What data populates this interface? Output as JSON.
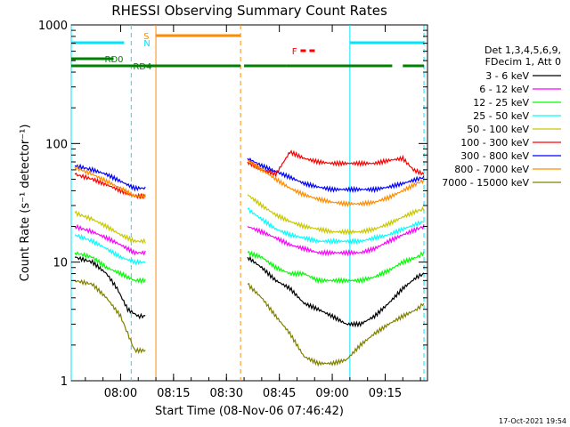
{
  "chart_data": {
    "type": "line",
    "title": "RHESSI Observing Summary Count Rates",
    "xlabel": "Start Time (08-Nov-06 07:46:42)",
    "ylabel": "Count Rate (s⁻¹ detector⁻¹)",
    "y_scale": "log",
    "ylim": [
      1,
      1000
    ],
    "xlim": [
      "07:46",
      "09:27"
    ],
    "x_ticks": [
      "08:00",
      "08:15",
      "08:30",
      "08:45",
      "09:00",
      "09:15"
    ],
    "y_ticks": [
      "1",
      "10",
      "100",
      "1000"
    ],
    "legend_header": [
      "Det 1,3,4,5,6,9,",
      "FDecim 1, Att 0"
    ],
    "legend_placement": "right",
    "footer_timestamp": "17-Oct-2021 19:54",
    "flags": {
      "S": {
        "color": "#ff8c00",
        "intervals": [
          [
            "08:10",
            "08:34"
          ]
        ]
      },
      "N": {
        "color": "#00e5ff",
        "intervals": [
          [
            "07:46",
            "08:01"
          ],
          [
            "09:05",
            "09:26"
          ]
        ]
      },
      "F": {
        "color": "#ff0000",
        "intervals": [
          [
            "08:51",
            "08:56"
          ]
        ]
      },
      "RD0": {
        "color": "#008000",
        "intervals": [
          [
            "07:46",
            "07:58"
          ]
        ]
      },
      "RD4": {
        "color": "#008000",
        "intervals": [
          [
            "07:46",
            "08:34"
          ],
          [
            "08:35",
            "08:47"
          ],
          [
            "08:47",
            "09:17"
          ],
          [
            "09:20",
            "09:26"
          ]
        ]
      }
    },
    "vlines": [
      {
        "t": "07:46",
        "color": "#00e5ff",
        "style": "solid"
      },
      {
        "t": "08:03",
        "color": "#00e5ff",
        "style": "dashed"
      },
      {
        "t": "08:10",
        "color": "#ff8c00",
        "style": "solid"
      },
      {
        "t": "08:34",
        "color": "#ff8c00",
        "style": "dashed"
      },
      {
        "t": "09:05",
        "color": "#00e5ff",
        "style": "solid"
      },
      {
        "t": "09:26",
        "color": "#00e5ff",
        "style": "dashed"
      }
    ],
    "series": [
      {
        "name": "3 - 6 keV",
        "color": "#000000",
        "values": [
          [
            "07:47",
            11
          ],
          [
            "07:52",
            10
          ],
          [
            "07:56",
            8
          ],
          [
            "07:59",
            6
          ],
          [
            "08:02",
            4
          ],
          [
            "08:05",
            3.5
          ],
          [
            "08:07",
            3.5
          ],
          [
            "08:36",
            11
          ],
          [
            "08:40",
            9
          ],
          [
            "08:44",
            7
          ],
          [
            "08:48",
            6
          ],
          [
            "08:52",
            4.5
          ],
          [
            "08:56",
            4
          ],
          [
            "09:00",
            3.5
          ],
          [
            "09:04",
            3
          ],
          [
            "09:08",
            3
          ],
          [
            "09:12",
            3.5
          ],
          [
            "09:16",
            4.5
          ],
          [
            "09:20",
            6
          ],
          [
            "09:24",
            7.5
          ],
          [
            "09:26",
            8
          ]
        ]
      },
      {
        "name": "6 - 12 keV",
        "color": "#ff00ff",
        "values": [
          [
            "07:47",
            20
          ],
          [
            "07:52",
            18
          ],
          [
            "07:56",
            16
          ],
          [
            "08:00",
            14
          ],
          [
            "08:04",
            12
          ],
          [
            "08:07",
            12
          ],
          [
            "08:36",
            20
          ],
          [
            "08:40",
            18
          ],
          [
            "08:44",
            16
          ],
          [
            "08:48",
            14
          ],
          [
            "08:52",
            13
          ],
          [
            "08:56",
            12
          ],
          [
            "09:00",
            12
          ],
          [
            "09:04",
            12
          ],
          [
            "09:08",
            12
          ],
          [
            "09:12",
            13
          ],
          [
            "09:16",
            15
          ],
          [
            "09:20",
            17
          ],
          [
            "09:24",
            19
          ],
          [
            "09:26",
            20
          ]
        ]
      },
      {
        "name": "12 - 25 keV",
        "color": "#00ff00",
        "values": [
          [
            "07:47",
            12
          ],
          [
            "07:52",
            11
          ],
          [
            "07:56",
            9
          ],
          [
            "08:00",
            8
          ],
          [
            "08:04",
            7
          ],
          [
            "08:07",
            7
          ],
          [
            "08:36",
            12
          ],
          [
            "08:40",
            11
          ],
          [
            "08:44",
            9
          ],
          [
            "08:48",
            8
          ],
          [
            "08:52",
            8
          ],
          [
            "08:56",
            7
          ],
          [
            "09:00",
            7
          ],
          [
            "09:04",
            7
          ],
          [
            "09:08",
            7
          ],
          [
            "09:12",
            7.5
          ],
          [
            "09:16",
            8.5
          ],
          [
            "09:20",
            10
          ],
          [
            "09:24",
            11
          ],
          [
            "09:26",
            12
          ]
        ]
      },
      {
        "name": "25 - 50 keV",
        "color": "#00ffff",
        "values": [
          [
            "07:47",
            17
          ],
          [
            "07:52",
            15
          ],
          [
            "07:56",
            13
          ],
          [
            "08:00",
            11
          ],
          [
            "08:04",
            10
          ],
          [
            "08:07",
            10
          ],
          [
            "08:36",
            28
          ],
          [
            "08:40",
            23
          ],
          [
            "08:44",
            19
          ],
          [
            "08:48",
            17
          ],
          [
            "08:52",
            16
          ],
          [
            "08:56",
            15
          ],
          [
            "09:00",
            15
          ],
          [
            "09:04",
            15
          ],
          [
            "09:08",
            15
          ],
          [
            "09:12",
            16
          ],
          [
            "09:16",
            17
          ],
          [
            "09:20",
            19
          ],
          [
            "09:24",
            21
          ],
          [
            "09:26",
            22
          ]
        ]
      },
      {
        "name": "50 - 100 keV",
        "color": "#c8c800",
        "values": [
          [
            "07:47",
            26
          ],
          [
            "07:52",
            23
          ],
          [
            "07:56",
            20
          ],
          [
            "08:00",
            17
          ],
          [
            "08:04",
            15
          ],
          [
            "08:07",
            15
          ],
          [
            "08:36",
            37
          ],
          [
            "08:40",
            30
          ],
          [
            "08:44",
            25
          ],
          [
            "08:48",
            22
          ],
          [
            "08:52",
            20
          ],
          [
            "08:56",
            19
          ],
          [
            "09:00",
            18
          ],
          [
            "09:04",
            18
          ],
          [
            "09:08",
            18
          ],
          [
            "09:12",
            19
          ],
          [
            "09:16",
            21
          ],
          [
            "09:20",
            24
          ],
          [
            "09:24",
            27
          ],
          [
            "09:26",
            28
          ]
        ]
      },
      {
        "name": "100 - 300 keV",
        "color": "#ff0000",
        "values": [
          [
            "07:47",
            55
          ],
          [
            "07:52",
            50
          ],
          [
            "07:56",
            45
          ],
          [
            "08:00",
            40
          ],
          [
            "08:04",
            36
          ],
          [
            "08:07",
            36
          ],
          [
            "08:36",
            70
          ],
          [
            "08:40",
            60
          ],
          [
            "08:44",
            55
          ],
          [
            "08:48",
            85
          ],
          [
            "08:52",
            75
          ],
          [
            "08:56",
            70
          ],
          [
            "09:00",
            68
          ],
          [
            "09:04",
            68
          ],
          [
            "09:08",
            68
          ],
          [
            "09:12",
            68
          ],
          [
            "09:16",
            72
          ],
          [
            "09:20",
            75
          ],
          [
            "09:23",
            60
          ],
          [
            "09:26",
            55
          ]
        ]
      },
      {
        "name": "300 - 800 keV",
        "color": "#0000ff",
        "values": [
          [
            "07:47",
            65
          ],
          [
            "07:52",
            60
          ],
          [
            "07:56",
            55
          ],
          [
            "08:00",
            48
          ],
          [
            "08:04",
            42
          ],
          [
            "08:07",
            42
          ],
          [
            "08:36",
            75
          ],
          [
            "08:40",
            65
          ],
          [
            "08:44",
            58
          ],
          [
            "08:48",
            52
          ],
          [
            "08:52",
            46
          ],
          [
            "08:56",
            43
          ],
          [
            "09:00",
            41
          ],
          [
            "09:04",
            41
          ],
          [
            "09:08",
            41
          ],
          [
            "09:12",
            41
          ],
          [
            "09:16",
            43
          ],
          [
            "09:20",
            46
          ],
          [
            "09:24",
            50
          ],
          [
            "09:26",
            52
          ]
        ]
      },
      {
        "name": "800 - 7000 keV",
        "color": "#ff8c00",
        "values": [
          [
            "07:47",
            63
          ],
          [
            "07:52",
            55
          ],
          [
            "07:56",
            48
          ],
          [
            "08:00",
            42
          ],
          [
            "08:04",
            36
          ],
          [
            "08:07",
            36
          ],
          [
            "08:36",
            72
          ],
          [
            "08:40",
            60
          ],
          [
            "08:44",
            50
          ],
          [
            "08:48",
            42
          ],
          [
            "08:52",
            37
          ],
          [
            "08:56",
            34
          ],
          [
            "09:00",
            32
          ],
          [
            "09:04",
            31
          ],
          [
            "09:08",
            31
          ],
          [
            "09:12",
            32
          ],
          [
            "09:16",
            35
          ],
          [
            "09:20",
            40
          ],
          [
            "09:24",
            46
          ],
          [
            "09:26",
            49
          ]
        ]
      },
      {
        "name": "7000 - 15000 keV",
        "color": "#808000",
        "values": [
          [
            "07:47",
            7
          ],
          [
            "07:52",
            6.5
          ],
          [
            "07:56",
            5
          ],
          [
            "08:00",
            3.5
          ],
          [
            "08:02",
            2.5
          ],
          [
            "08:04",
            1.8
          ],
          [
            "08:07",
            1.8
          ],
          [
            "08:36",
            6.5
          ],
          [
            "08:40",
            5
          ],
          [
            "08:44",
            3.5
          ],
          [
            "08:48",
            2.5
          ],
          [
            "08:52",
            1.6
          ],
          [
            "08:56",
            1.4
          ],
          [
            "09:00",
            1.4
          ],
          [
            "09:04",
            1.5
          ],
          [
            "09:08",
            2
          ],
          [
            "09:12",
            2.5
          ],
          [
            "09:16",
            3
          ],
          [
            "09:20",
            3.5
          ],
          [
            "09:24",
            4
          ],
          [
            "09:26",
            4.5
          ]
        ]
      }
    ]
  }
}
